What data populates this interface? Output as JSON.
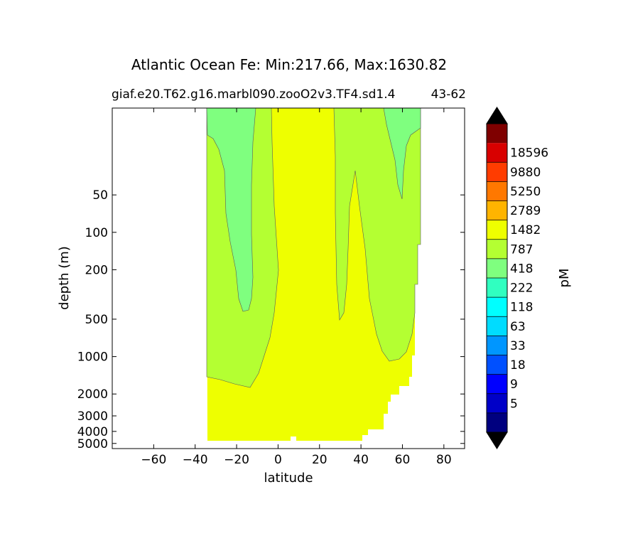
{
  "chart_data": {
    "type": "heatmap",
    "title": "Atlantic Ocean Fe: Min:217.66, Max:1630.82",
    "subtitle_left": "giaf.e20.T62.g16.marbl090.zooO2v3.TF4.sd1.4",
    "subtitle_right": "43-62",
    "xlabel": "latitude",
    "ylabel": "depth (m)",
    "colorbar_label": "pM",
    "xlim": [
      -80,
      90
    ],
    "ylim": [
      5500,
      10
    ],
    "yscale": "log",
    "xticks": [
      -60,
      -40,
      -20,
      0,
      20,
      40,
      60,
      80
    ],
    "xtick_labels": [
      "−60",
      "−40",
      "−20",
      "0",
      "20",
      "40",
      "60",
      "80"
    ],
    "yticks": [
      50,
      100,
      200,
      500,
      1000,
      2000,
      3000,
      4000,
      5000
    ],
    "ytick_labels": [
      "50",
      "100",
      "200",
      "500",
      "1000",
      "2000",
      "3000",
      "4000",
      "5000"
    ],
    "levels": [
      "5",
      "9",
      "18",
      "33",
      "63",
      "118",
      "222",
      "418",
      "787",
      "1482",
      "2789",
      "5250",
      "9880",
      "18596"
    ],
    "colors": [
      "#00007f",
      "#0000c8",
      "#0000ff",
      "#0050ff",
      "#0096ff",
      "#00dcff",
      "#00ffff",
      "#30ffc0",
      "#7fff7f",
      "#b4ff32",
      "#eeff00",
      "#ffb400",
      "#ff7800",
      "#ff3c00",
      "#d80000",
      "#7f0000"
    ],
    "extend_low_color": "#000000",
    "extend_high_color": "#000000",
    "data_extent_lat": [
      -34,
      69
    ],
    "dominant_bands": [
      "418-787",
      "787-1482",
      "1482-2789"
    ]
  }
}
